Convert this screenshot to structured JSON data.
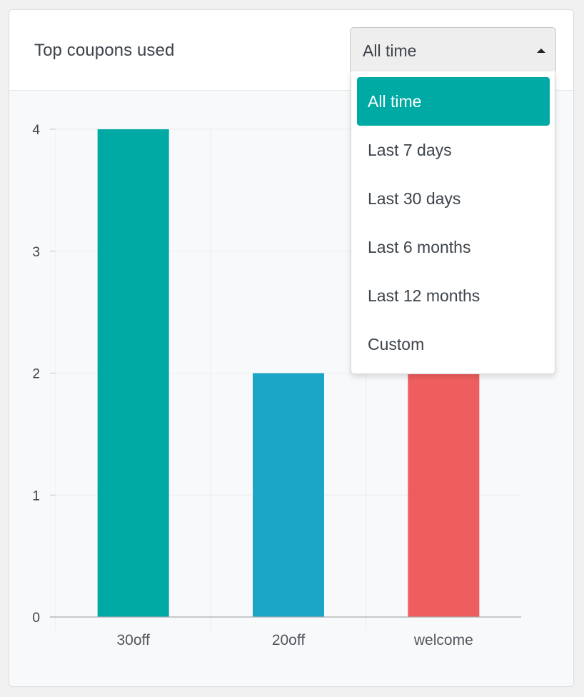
{
  "widget": {
    "title": "Top coupons used"
  },
  "range_select": {
    "value": "All time",
    "options": [
      "All time",
      "Last 7 days",
      "Last 30 days",
      "Last 6 months",
      "Last 12 months",
      "Custom"
    ],
    "selected_index": 0
  },
  "colors": {
    "accent": "#00aaa4"
  },
  "chart_data": {
    "type": "bar",
    "categories": [
      "30off",
      "20off",
      "welcome"
    ],
    "values": [
      4,
      2,
      2
    ],
    "colors": [
      "#00aaa4",
      "#1ba6c8",
      "#ef5e5e"
    ],
    "y_ticks": [
      "0",
      "1",
      "2",
      "3",
      "4"
    ],
    "ylim": [
      0,
      4
    ],
    "grid": true,
    "title": "",
    "xlabel": "",
    "ylabel": ""
  }
}
